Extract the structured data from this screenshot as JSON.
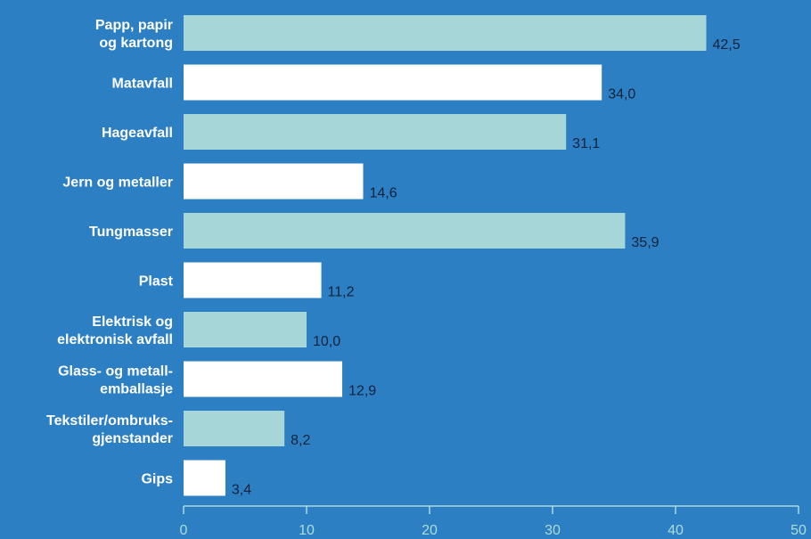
{
  "chart_data": {
    "type": "bar",
    "orientation": "horizontal",
    "categories": [
      [
        "Papp, papir",
        "og kartong"
      ],
      [
        "Matavfall"
      ],
      [
        "Hageavfall"
      ],
      [
        "Jern og metaller"
      ],
      [
        "Tungmasser"
      ],
      [
        "Plast"
      ],
      [
        "Elektrisk og",
        "elektronisk avfall"
      ],
      [
        "Glass- og metall-",
        "emballasje"
      ],
      [
        "Tekstiler/ombruks-",
        "gjenstander"
      ],
      [
        "Gips"
      ]
    ],
    "values": [
      42.5,
      34.0,
      31.1,
      14.6,
      35.9,
      11.2,
      10.0,
      12.9,
      8.2,
      3.4
    ],
    "value_labels": [
      "42,5",
      "34,0",
      "31,1",
      "14,6",
      "35,9",
      "11,2",
      "10,0",
      "12,9",
      "8,2",
      "3,4"
    ],
    "xlim": [
      0,
      50
    ],
    "xticks": [
      0,
      10,
      20,
      30,
      40,
      50
    ],
    "grid": false,
    "colors": {
      "background": "#2d7fc3",
      "bar_alternate_1": "#a6d6d8",
      "bar_alternate_2": "#ffffff",
      "axis": "#a9dcdc",
      "value_text": "#10233a",
      "category_text": "#ffffff"
    }
  }
}
